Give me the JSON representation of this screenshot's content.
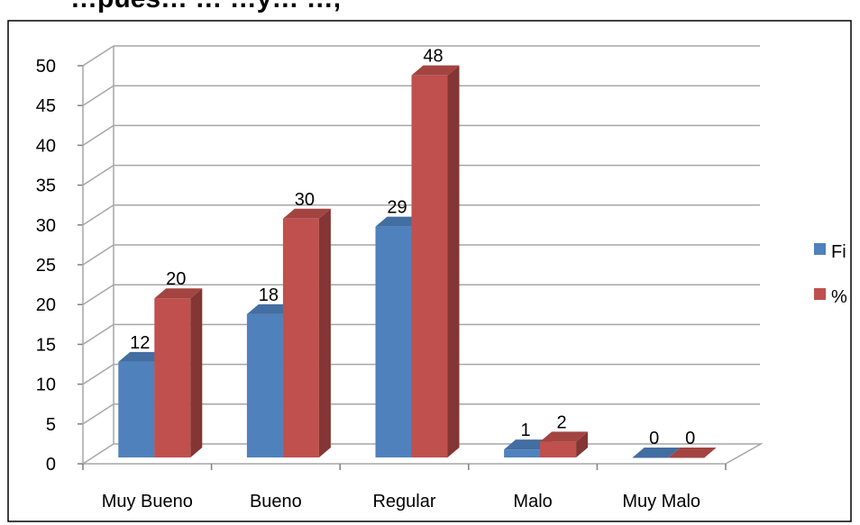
{
  "chart_data": {
    "type": "bar",
    "title": "…pues… … …y…   …,",
    "categories": [
      "Muy Bueno",
      "Bueno",
      "Regular",
      "Malo",
      "Muy Malo"
    ],
    "series": [
      {
        "name": "Fi",
        "values": [
          12,
          18,
          29,
          1,
          0
        ],
        "color": "#4f81bd"
      },
      {
        "name": "%",
        "values": [
          20,
          30,
          48,
          2,
          0
        ],
        "color": "#c0504d"
      }
    ],
    "ylim": [
      0,
      50
    ],
    "yticks": [
      "0",
      "5",
      "10",
      "15",
      "20",
      "25",
      "30",
      "35",
      "40",
      "45",
      "50"
    ],
    "grid": true,
    "legend": "right",
    "three_d": true
  }
}
